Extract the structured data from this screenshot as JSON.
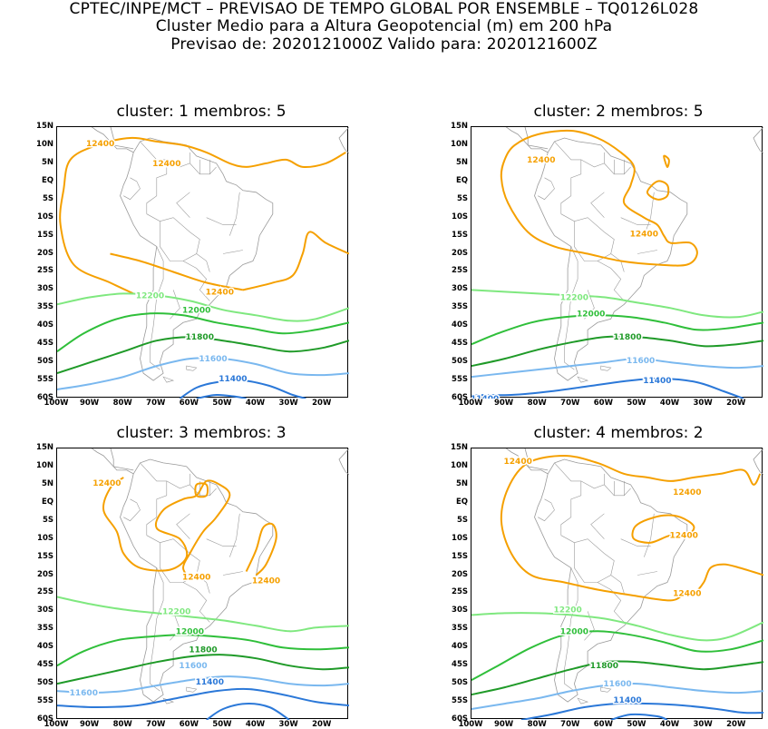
{
  "header": {
    "line1": "CPTEC/INPE/MCT – PREVISAO DE TEMPO GLOBAL POR ENSEMBLE – TQ0126L028",
    "line2": "Cluster Medio para a Altura Geopotencial (m) em 200 hPa",
    "line3": "Previsao de: 2020121000Z   Valido para: 2020121600Z"
  },
  "colors": {
    "c12400": "#f5a000",
    "c12200": "#7fe87f",
    "c12000": "#2fbf3a",
    "c11800": "#1f9a28",
    "c11600": "#7ab8ef",
    "c11400": "#2b78d8",
    "land": "#9a9a9a"
  },
  "axes": {
    "lat_labels": [
      "15N",
      "10N",
      "5N",
      "EQ",
      "5S",
      "10S",
      "15S",
      "20S",
      "25S",
      "30S",
      "35S",
      "40S",
      "45S",
      "50S",
      "55S",
      "60S"
    ],
    "lon_labels": [
      "100W",
      "90W",
      "80W",
      "70W",
      "60W",
      "50W",
      "40W",
      "30W",
      "20W"
    ]
  },
  "panels": [
    {
      "title": "cluster: 1   membros: 5",
      "contour_labels": [
        {
          "text": "12400"
        },
        {
          "text": "12400"
        },
        {
          "text": "12400"
        },
        {
          "text": "12200"
        },
        {
          "text": "12000"
        },
        {
          "text": "11800"
        },
        {
          "text": "11600"
        },
        {
          "text": "11400"
        }
      ]
    },
    {
      "title": "cluster: 2   membros: 5",
      "contour_labels": [
        {
          "text": "12400"
        },
        {
          "text": "12400"
        },
        {
          "text": "12200"
        },
        {
          "text": "12000"
        },
        {
          "text": "11800"
        },
        {
          "text": "11600"
        },
        {
          "text": "11400"
        },
        {
          "text": "11400"
        }
      ]
    },
    {
      "title": "cluster: 3   membros: 3",
      "contour_labels": [
        {
          "text": "12400"
        },
        {
          "text": "12400"
        },
        {
          "text": "12400"
        },
        {
          "text": "12200"
        },
        {
          "text": "12000"
        },
        {
          "text": "11800"
        },
        {
          "text": "11600"
        },
        {
          "text": "11600"
        },
        {
          "text": "11400"
        }
      ]
    },
    {
      "title": "cluster: 4   membros: 2",
      "contour_labels": [
        {
          "text": "12400"
        },
        {
          "text": "12400"
        },
        {
          "text": "12400"
        },
        {
          "text": "12400"
        },
        {
          "text": "12200"
        },
        {
          "text": "12000"
        },
        {
          "text": "11800"
        },
        {
          "text": "11600"
        },
        {
          "text": "11400"
        }
      ]
    }
  ]
}
